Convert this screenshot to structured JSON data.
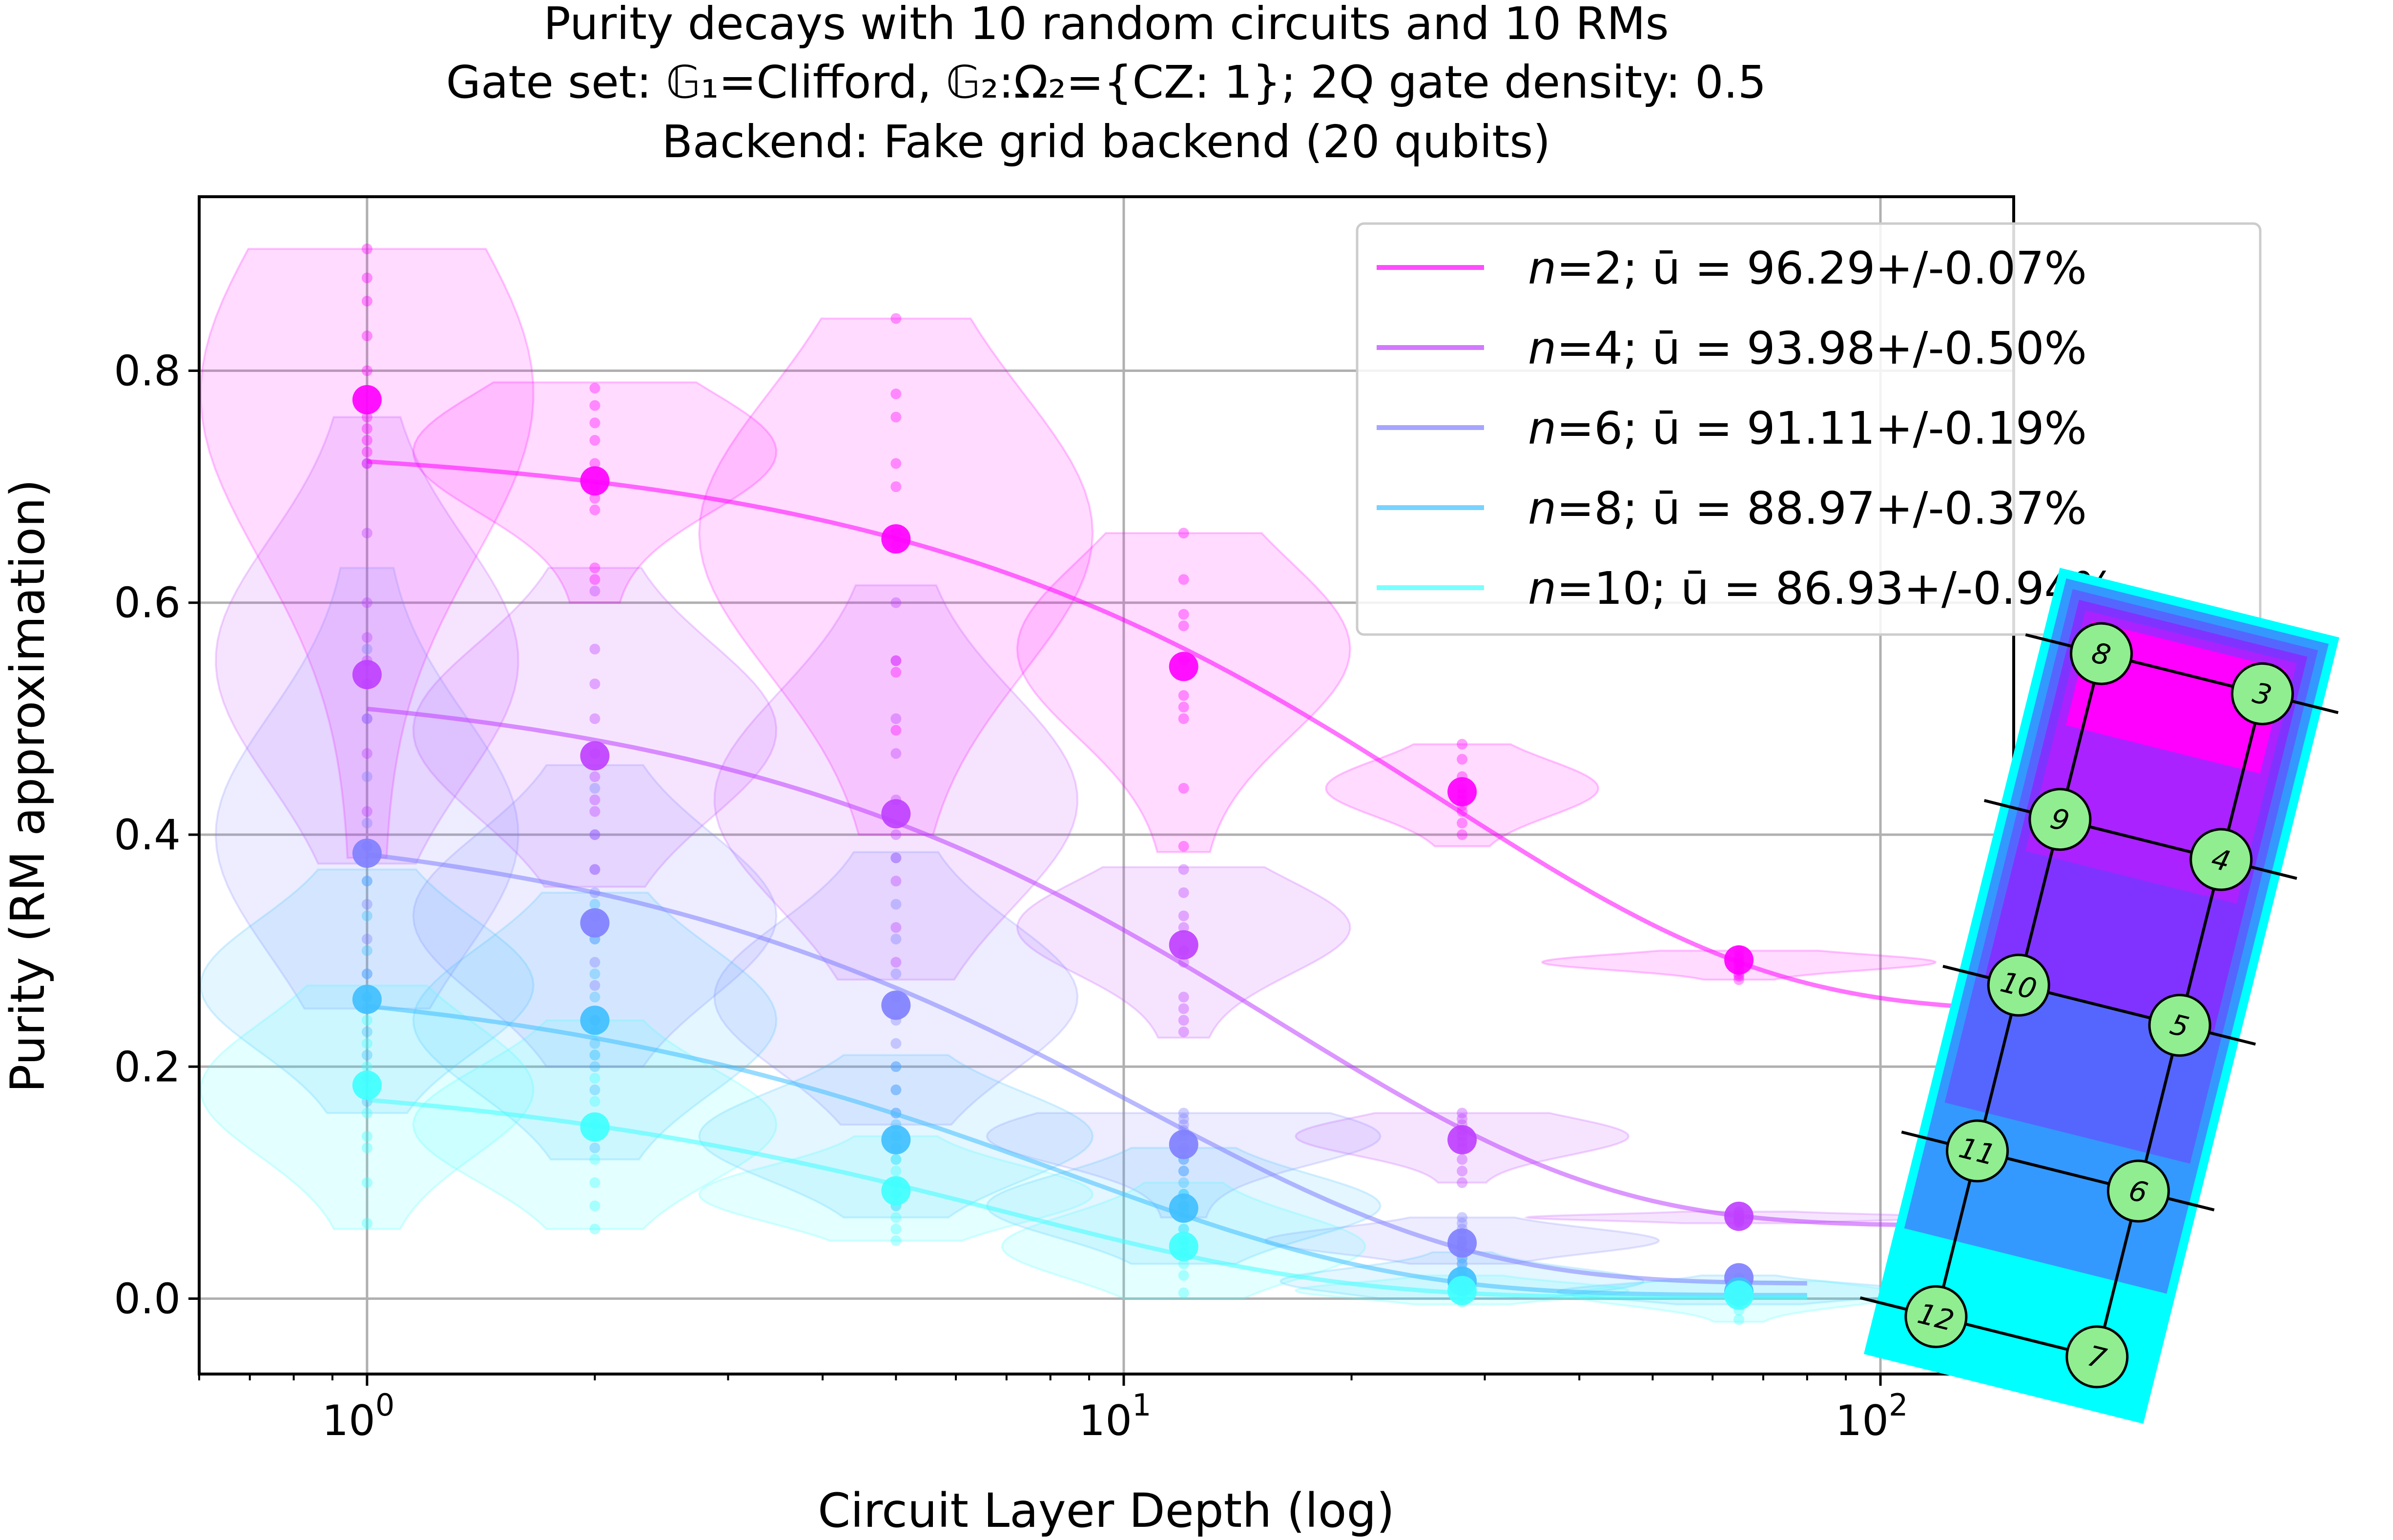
{
  "chart_data": {
    "type": "line",
    "title": [
      "Purity decays with 10 random circuits and 10 RMs",
      "Gate set: 𝔾₁=Clifford, 𝔾₂:Ω₂={CZ: 1}; 2Q gate density: 0.5",
      "Backend: Fake grid backend (20 qubits)"
    ],
    "xlabel": "Circuit Layer Depth (log)",
    "ylabel": "Purity (RM approximation)",
    "x_scale": "log",
    "xlim": [
      0.6,
      150
    ],
    "ylim": [
      -0.065,
      0.95
    ],
    "x_ticks": [
      {
        "value": 1,
        "base": "10",
        "exp": "0"
      },
      {
        "value": 10,
        "base": "10",
        "exp": "1"
      },
      {
        "value": 100,
        "base": "10",
        "exp": "2"
      }
    ],
    "y_ticks": [
      {
        "value": 0.0,
        "label": "0.0"
      },
      {
        "value": 0.2,
        "label": "0.2"
      },
      {
        "value": 0.4,
        "label": "0.4"
      },
      {
        "value": 0.6,
        "label": "0.6"
      },
      {
        "value": 0.8,
        "label": "0.8"
      }
    ],
    "grid": true,
    "legend_position": "upper-right",
    "x": [
      1,
      2,
      5,
      12,
      28,
      65,
      150
    ],
    "series": [
      {
        "name": "n=2; ū = 96.29+/-0.07%",
        "n_label": "n",
        "legend_rest": "=2; ū = 96.29+/-0.07%",
        "color": "#ff00ff",
        "means": [
          0.775,
          0.705,
          0.655,
          0.545,
          0.437,
          0.292,
          0.252
        ],
        "fit": {
          "A": 0.492,
          "p": 0.9629,
          "B": 0.248
        },
        "violins": [
          {
            "x": 1,
            "min": 0.38,
            "max": 0.905,
            "mode": 0.78,
            "halfwidth": 0.22
          },
          {
            "x": 2,
            "min": 0.6,
            "max": 0.79,
            "mode": 0.73,
            "halfwidth": 0.24
          },
          {
            "x": 5,
            "min": 0.4,
            "max": 0.845,
            "mode": 0.66,
            "halfwidth": 0.26
          },
          {
            "x": 12,
            "min": 0.385,
            "max": 0.66,
            "mode": 0.56,
            "halfwidth": 0.22
          },
          {
            "x": 28,
            "min": 0.39,
            "max": 0.478,
            "mode": 0.44,
            "halfwidth": 0.18
          },
          {
            "x": 65,
            "min": 0.275,
            "max": 0.3,
            "mode": 0.29,
            "halfwidth": 0.26
          }
        ],
        "dots": [
          [
            0.905,
            0.88,
            0.86,
            0.83,
            0.8,
            0.76,
            0.75,
            0.74,
            0.73,
            0.72
          ],
          [
            0.785,
            0.77,
            0.755,
            0.74,
            0.72,
            0.7,
            0.69,
            0.68,
            0.63,
            0.62
          ],
          [
            0.845,
            0.78,
            0.76,
            0.72,
            0.7,
            0.66,
            0.65,
            0.55,
            0.54,
            0.49
          ],
          [
            0.66,
            0.62,
            0.59,
            0.58,
            0.55,
            0.52,
            0.51,
            0.5,
            0.44,
            0.39
          ],
          [
            0.478,
            0.465,
            0.45,
            0.44,
            0.435,
            0.43,
            0.425,
            0.42,
            0.41,
            0.4
          ],
          [
            0.3,
            0.295,
            0.292,
            0.29,
            0.288,
            0.285,
            0.283,
            0.28,
            0.278,
            0.275
          ]
        ]
      },
      {
        "name": "n=4; ū = 93.98+/-0.50%",
        "n_label": "n",
        "legend_rest": "=4; ū = 93.98+/-0.50%",
        "color": "#bf40ff",
        "means": [
          0.538,
          0.468,
          0.418,
          0.305,
          0.137,
          0.071,
          0.064
        ],
        "fit": {
          "A": 0.474,
          "p": 0.9398,
          "B": 0.063
        },
        "violins": [
          {
            "x": 1,
            "min": 0.375,
            "max": 0.76,
            "mode": 0.55,
            "halfwidth": 0.2
          },
          {
            "x": 2,
            "min": 0.355,
            "max": 0.63,
            "mode": 0.49,
            "halfwidth": 0.24
          },
          {
            "x": 5,
            "min": 0.275,
            "max": 0.615,
            "mode": 0.43,
            "halfwidth": 0.24
          },
          {
            "x": 12,
            "min": 0.225,
            "max": 0.372,
            "mode": 0.32,
            "halfwidth": 0.22
          },
          {
            "x": 28,
            "min": 0.1,
            "max": 0.16,
            "mode": 0.14,
            "halfwidth": 0.22
          },
          {
            "x": 65,
            "min": 0.065,
            "max": 0.075,
            "mode": 0.07,
            "halfwidth": 0.28
          }
        ],
        "dots": [
          [
            0.72,
            0.66,
            0.6,
            0.57,
            0.55,
            0.53,
            0.5,
            0.47,
            0.42,
            0.39
          ],
          [
            0.61,
            0.56,
            0.53,
            0.5,
            0.47,
            0.45,
            0.43,
            0.42,
            0.4,
            0.37
          ],
          [
            0.6,
            0.55,
            0.5,
            0.47,
            0.43,
            0.4,
            0.38,
            0.36,
            0.32,
            0.29
          ],
          [
            0.37,
            0.35,
            0.33,
            0.32,
            0.3,
            0.29,
            0.26,
            0.25,
            0.24,
            0.23
          ],
          [
            0.16,
            0.155,
            0.15,
            0.145,
            0.14,
            0.135,
            0.13,
            0.12,
            0.11,
            0.1
          ],
          [
            0.075,
            0.074,
            0.072,
            0.071,
            0.07,
            0.069,
            0.068,
            0.067,
            0.066,
            0.065
          ]
        ]
      },
      {
        "name": "n=6; ū = 91.11+/-0.19%",
        "n_label": "n",
        "legend_rest": "=6; ū = 91.11+/-0.19%",
        "color": "#8080ff",
        "means": [
          0.384,
          0.324,
          0.253,
          0.133,
          0.048,
          0.018
        ],
        "fit": {
          "A": 0.406,
          "p": 0.9111,
          "B": 0.013
        },
        "violins": [
          {
            "x": 1,
            "min": 0.25,
            "max": 0.63,
            "mode": 0.4,
            "halfwidth": 0.2
          },
          {
            "x": 2,
            "min": 0.2,
            "max": 0.46,
            "mode": 0.33,
            "halfwidth": 0.24
          },
          {
            "x": 5,
            "min": 0.15,
            "max": 0.385,
            "mode": 0.26,
            "halfwidth": 0.24
          },
          {
            "x": 12,
            "min": 0.07,
            "max": 0.16,
            "mode": 0.14,
            "halfwidth": 0.26
          },
          {
            "x": 28,
            "min": 0.03,
            "max": 0.07,
            "mode": 0.05,
            "halfwidth": 0.26
          }
        ],
        "dots": [
          [
            0.56,
            0.5,
            0.45,
            0.41,
            0.39,
            0.36,
            0.34,
            0.31,
            0.28,
            0.26
          ],
          [
            0.44,
            0.4,
            0.37,
            0.35,
            0.33,
            0.31,
            0.29,
            0.27,
            0.24,
            0.21
          ],
          [
            0.38,
            0.34,
            0.31,
            0.28,
            0.26,
            0.24,
            0.22,
            0.2,
            0.18,
            0.16
          ],
          [
            0.16,
            0.155,
            0.15,
            0.145,
            0.14,
            0.13,
            0.12,
            0.11,
            0.09,
            0.08
          ],
          [
            0.07,
            0.065,
            0.06,
            0.055,
            0.05,
            0.048,
            0.045,
            0.04,
            0.035,
            0.03
          ]
        ]
      },
      {
        "name": "n=8; ū = 88.97+/-0.37%",
        "n_label": "n",
        "legend_rest": "=8; ū = 88.97+/-0.37%",
        "color": "#40bfff",
        "means": [
          0.258,
          0.24,
          0.137,
          0.078,
          0.015,
          0.006
        ],
        "fit": {
          "A": 0.28,
          "p": 0.8897,
          "B": 0.003
        },
        "violins": [
          {
            "x": 1,
            "min": 0.16,
            "max": 0.37,
            "mode": 0.27,
            "halfwidth": 0.22
          },
          {
            "x": 2,
            "min": 0.12,
            "max": 0.35,
            "mode": 0.24,
            "halfwidth": 0.24
          },
          {
            "x": 5,
            "min": 0.07,
            "max": 0.21,
            "mode": 0.14,
            "halfwidth": 0.26
          },
          {
            "x": 12,
            "min": 0.03,
            "max": 0.13,
            "mode": 0.08,
            "halfwidth": 0.26
          },
          {
            "x": 28,
            "min": 0.0,
            "max": 0.04,
            "mode": 0.015,
            "halfwidth": 0.24
          },
          {
            "x": 65,
            "min": -0.005,
            "max": 0.02,
            "mode": 0.006,
            "halfwidth": 0.24
          }
        ],
        "dots": [
          [
            0.36,
            0.33,
            0.3,
            0.28,
            0.26,
            0.25,
            0.23,
            0.21,
            0.19,
            0.17
          ],
          [
            0.34,
            0.31,
            0.28,
            0.26,
            0.24,
            0.22,
            0.2,
            0.18,
            0.15,
            0.13
          ],
          [
            0.2,
            0.18,
            0.16,
            0.15,
            0.14,
            0.13,
            0.12,
            0.1,
            0.09,
            0.08
          ],
          [
            0.12,
            0.11,
            0.1,
            0.09,
            0.08,
            0.075,
            0.07,
            0.06,
            0.05,
            0.04
          ],
          [
            0.035,
            0.03,
            0.025,
            0.02,
            0.015,
            0.012,
            0.01,
            0.008,
            0.005,
            0.002
          ],
          [
            0.018,
            0.015,
            0.012,
            0.01,
            0.008,
            0.006,
            0.004,
            0.002,
            0.0,
            -0.003
          ]
        ]
      },
      {
        "name": "n=10; ū = 86.93+/-0.94%",
        "n_label": "n",
        "legend_rest": "=10; ū = 86.93+/-0.94%",
        "color": "#40ffff",
        "means": [
          0.184,
          0.148,
          0.093,
          0.045,
          0.007,
          0.003
        ],
        "fit": {
          "A": 0.196,
          "p": 0.8693,
          "B": 0.001
        },
        "violins": [
          {
            "x": 1,
            "min": 0.06,
            "max": 0.27,
            "mode": 0.18,
            "halfwidth": 0.22
          },
          {
            "x": 2,
            "min": 0.06,
            "max": 0.24,
            "mode": 0.15,
            "halfwidth": 0.24
          },
          {
            "x": 5,
            "min": 0.05,
            "max": 0.14,
            "mode": 0.09,
            "halfwidth": 0.26
          },
          {
            "x": 12,
            "min": 0.0,
            "max": 0.1,
            "mode": 0.045,
            "halfwidth": 0.24
          },
          {
            "x": 28,
            "min": -0.005,
            "max": 0.02,
            "mode": 0.007,
            "halfwidth": 0.22
          },
          {
            "x": 65,
            "min": -0.02,
            "max": 0.015,
            "mode": 0.003,
            "halfwidth": 0.22
          }
        ],
        "dots": [
          [
            0.26,
            0.24,
            0.22,
            0.2,
            0.18,
            0.16,
            0.14,
            0.13,
            0.1,
            0.065
          ],
          [
            0.23,
            0.21,
            0.19,
            0.17,
            0.15,
            0.14,
            0.12,
            0.1,
            0.08,
            0.06
          ],
          [
            0.14,
            0.13,
            0.12,
            0.11,
            0.1,
            0.09,
            0.08,
            0.07,
            0.06,
            0.05
          ],
          [
            0.09,
            0.08,
            0.07,
            0.06,
            0.05,
            0.045,
            0.04,
            0.03,
            0.02,
            0.005
          ],
          [
            0.02,
            0.017,
            0.014,
            0.011,
            0.009,
            0.007,
            0.005,
            0.003,
            0.001,
            -0.003
          ],
          [
            0.015,
            0.012,
            0.009,
            0.006,
            0.004,
            0.002,
            0.0,
            -0.004,
            -0.01,
            -0.018
          ]
        ]
      }
    ]
  },
  "inset": {
    "layer_colors": [
      "#00ffff",
      "#3399ff",
      "#5566ff",
      "#8033ff",
      "#aa22ff",
      "#ff00ff"
    ],
    "node_color": "#90ee90",
    "rows": [
      {
        "left": "8",
        "right": "3"
      },
      {
        "left": "9",
        "right": "4"
      },
      {
        "left": "10",
        "right": "5"
      },
      {
        "left": "11",
        "right": "6"
      },
      {
        "left": "12",
        "right": "7"
      }
    ]
  }
}
